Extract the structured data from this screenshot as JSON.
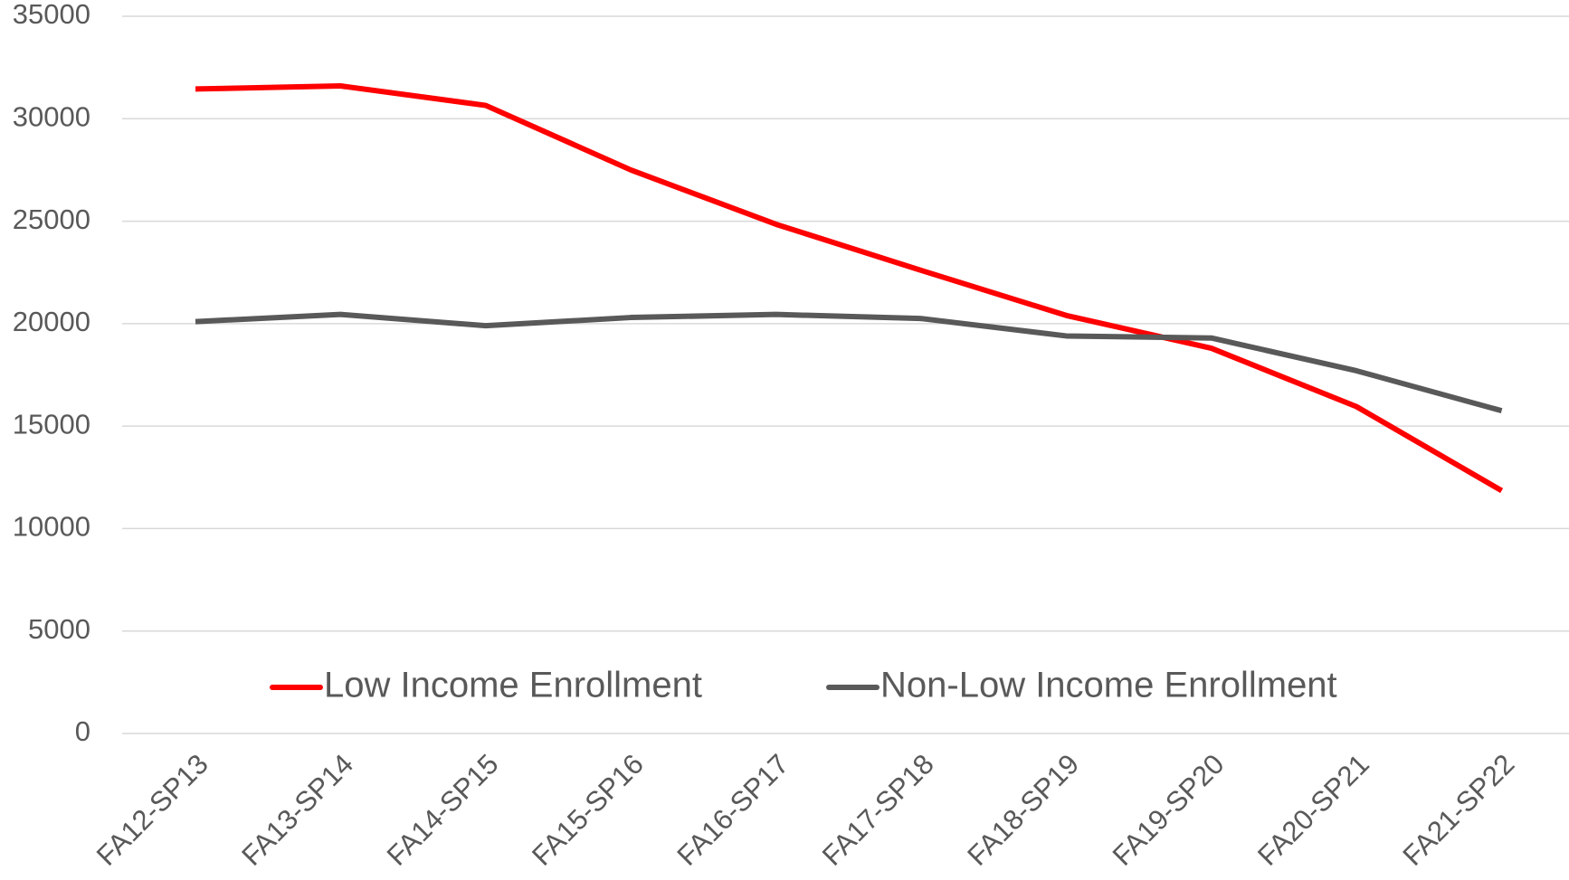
{
  "chart_data": {
    "type": "line",
    "categories": [
      "FA12-SP13",
      "FA13-SP14",
      "FA14-SP15",
      "FA15-SP16",
      "FA16-SP17",
      "FA17-SP18",
      "FA18-SP19",
      "FA19-SP20",
      "FA20-SP21",
      "FA21-SP22"
    ],
    "series": [
      {
        "name": "Low Income Enrollment",
        "color": "#ff0000",
        "values": [
          31450,
          31600,
          30650,
          27500,
          24850,
          22600,
          20400,
          18800,
          15950,
          11850
        ]
      },
      {
        "name": "Non-Low Income Enrollment",
        "color": "#595959",
        "values": [
          20100,
          20450,
          19900,
          20300,
          20450,
          20250,
          19400,
          19300,
          17700,
          15750
        ]
      }
    ],
    "ylim": [
      0,
      35000
    ],
    "yticks": [
      0,
      5000,
      10000,
      15000,
      20000,
      25000,
      30000,
      35000
    ],
    "grid": true,
    "legend": "bottom"
  }
}
